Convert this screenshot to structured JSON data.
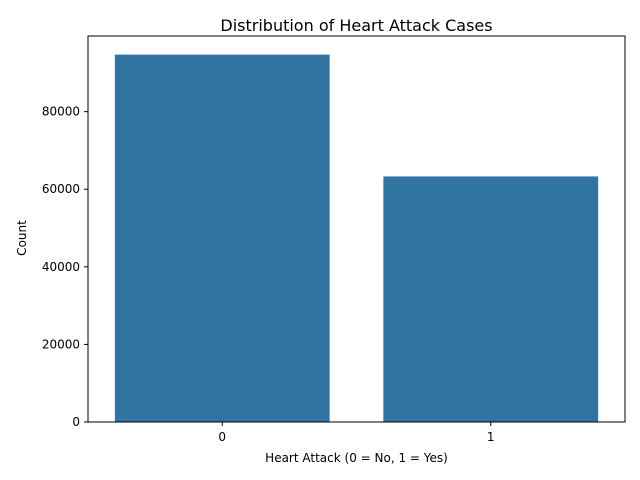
{
  "chart_data": {
    "type": "bar",
    "title": "Distribution of Heart Attack Cases",
    "xlabel": "Heart Attack (0 = No, 1 = Yes)",
    "ylabel": "Count",
    "categories": [
      "0",
      "1"
    ],
    "values": [
      94700,
      63300
    ],
    "ylim": [
      0,
      99500
    ],
    "yticks": [
      0,
      20000,
      40000,
      60000,
      80000
    ],
    "bar_color": "#3274a1",
    "grid": false,
    "legend": "none"
  }
}
